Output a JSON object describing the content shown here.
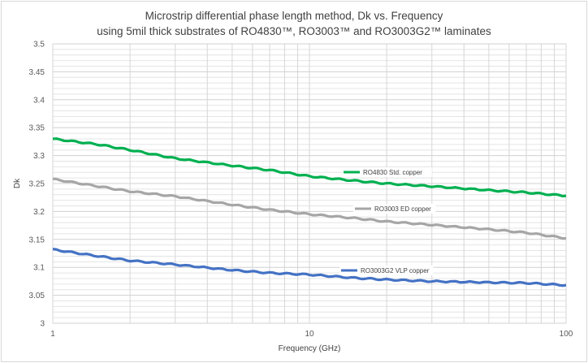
{
  "chart_data": {
    "type": "line",
    "title": "Microstrip differential  phase length method, Dk vs. Frequency",
    "subtitle": "using 5mil thick substrates of RO4830™, RO3003™ and RO3003G2™ laminates",
    "xlabel": "Frequency (GHz)",
    "ylabel": "Dk",
    "xscale": "log",
    "xlim": [
      1,
      100
    ],
    "ylim": [
      3,
      3.5
    ],
    "x_ticks": [
      "1",
      "10",
      "100"
    ],
    "y_ticks": [
      "3",
      "3.05",
      "3.1",
      "3.15",
      "3.2",
      "3.25",
      "3.3",
      "3.35",
      "3.4",
      "3.45",
      "3.5"
    ],
    "grid": true,
    "legend_placement": "inline labels near each line",
    "x": [
      1,
      1.5,
      2,
      3,
      5,
      7,
      10,
      15,
      20,
      30,
      50,
      70,
      100
    ],
    "series": [
      {
        "name": "RO4830 Std. copper",
        "color": "#00b050",
        "values": [
          3.33,
          3.32,
          3.31,
          3.295,
          3.282,
          3.274,
          3.263,
          3.255,
          3.25,
          3.245,
          3.238,
          3.234,
          3.228
        ]
      },
      {
        "name": "RO3003 ED copper",
        "color": "#a6a6a6",
        "values": [
          3.258,
          3.245,
          3.236,
          3.227,
          3.212,
          3.203,
          3.195,
          3.188,
          3.182,
          3.176,
          3.168,
          3.162,
          3.152
        ]
      },
      {
        "name": "RO3003G2 VLP copper",
        "color": "#4472c4",
        "values": [
          3.132,
          3.12,
          3.112,
          3.105,
          3.095,
          3.09,
          3.087,
          3.081,
          3.078,
          3.075,
          3.073,
          3.072,
          3.068
        ]
      }
    ]
  }
}
